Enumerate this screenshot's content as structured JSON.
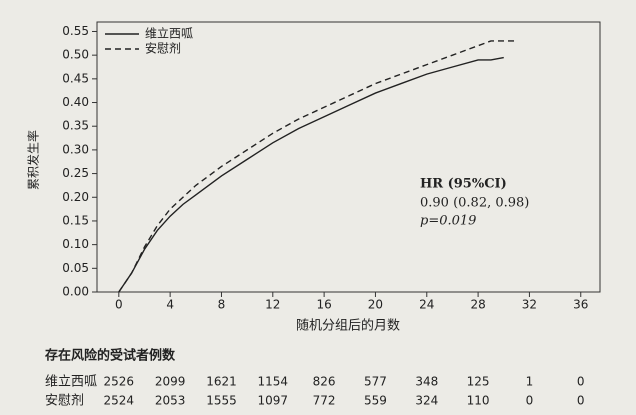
{
  "chart_data": {
    "type": "line",
    "ylabel": "累积发生率",
    "xlabel": "随机分组后的月数",
    "x": [
      0,
      1,
      2,
      3,
      4,
      5,
      6,
      7,
      8,
      10,
      12,
      14,
      16,
      18,
      20,
      22,
      24,
      26,
      28,
      29,
      30,
      31
    ],
    "series": [
      {
        "name": "维立西呱",
        "color": "#222222",
        "style": "solid",
        "values": [
          0,
          0.04,
          0.09,
          0.13,
          0.16,
          0.185,
          0.205,
          0.225,
          0.245,
          0.28,
          0.315,
          0.345,
          0.37,
          0.395,
          0.42,
          0.44,
          0.46,
          0.475,
          0.49,
          0.49,
          0.495,
          null
        ]
      },
      {
        "name": "安慰剂",
        "color": "#222222",
        "style": "dashed",
        "values": [
          0,
          0.04,
          0.095,
          0.14,
          0.175,
          0.2,
          0.225,
          0.245,
          0.265,
          0.3,
          0.335,
          0.365,
          0.39,
          0.415,
          0.44,
          0.46,
          0.48,
          0.5,
          0.52,
          0.53,
          0.53,
          0.53
        ]
      }
    ],
    "xlim": [
      -1.7,
      37.5
    ],
    "xticks": [
      0,
      4,
      8,
      12,
      16,
      20,
      24,
      28,
      32,
      36
    ],
    "ylim": [
      0,
      0.57
    ],
    "yticks": [
      {
        "value": 0,
        "label": "0.00"
      },
      0.05,
      {
        "value": 0.1,
        "label": "0.10"
      },
      0.15,
      {
        "value": 0.2,
        "label": "0.20"
      },
      0.25,
      {
        "value": 0.3,
        "label": "0.30"
      },
      0.35,
      {
        "value": 0.4,
        "label": "0.40"
      },
      0.45,
      {
        "value": 0.5,
        "label": "0.50"
      },
      0.55
    ],
    "grid": false,
    "legend": "upper left",
    "annotations": [
      "HR (95%CI)",
      "0.90 (0.82, 0.98)",
      "p=0.019"
    ],
    "risk_table": {
      "title": "存在风险的受试者例数",
      "rows": [
        {
          "name": "维立西呱",
          "values": [
            2526,
            2099,
            1621,
            1154,
            826,
            577,
            348,
            125,
            1,
            0
          ]
        },
        {
          "name": "安慰剂",
          "values": [
            2524,
            2053,
            1555,
            1097,
            772,
            559,
            324,
            110,
            0,
            0
          ]
        }
      ]
    }
  }
}
